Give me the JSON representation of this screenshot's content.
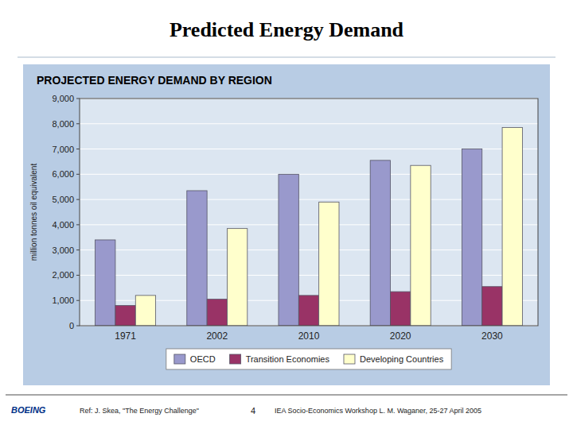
{
  "chart_data": {
    "type": "bar",
    "title": "Predicted Energy Demand",
    "subtitle": "PROJECTED ENERGY DEMAND BY REGION",
    "y_label": "million tonnes oil equivalent",
    "categories": [
      "1971",
      "2002",
      "2010",
      "2020",
      "2030"
    ],
    "series": [
      {
        "name": "OECD",
        "color": "#9999cc",
        "values": [
          3400,
          5350,
          6000,
          6550,
          7000
        ]
      },
      {
        "name": "Transition Economies",
        "color": "#993366",
        "values": [
          800,
          1050,
          1200,
          1350,
          1550
        ]
      },
      {
        "name": "Developing Countries",
        "color": "#ffffcc",
        "values": [
          1200,
          3850,
          4900,
          6350,
          7850
        ]
      }
    ],
    "ylim": [
      0,
      9000
    ],
    "yticks": [
      0,
      {
        "value": 1000,
        "label": "1,000"
      },
      {
        "value": 2000,
        "label": "2,000"
      },
      {
        "value": 3000,
        "label": "3,000"
      },
      {
        "value": 4000,
        "label": "4,000"
      },
      {
        "value": 5000,
        "label": "5,000"
      },
      {
        "value": 6000,
        "label": "6,000"
      },
      {
        "value": 7000,
        "label": "7,000"
      },
      {
        "value": 8000,
        "label": "8,000"
      },
      {
        "value": 9000,
        "label": "9,000"
      }
    ],
    "grid": true,
    "legend": "bottom",
    "annotations": [
      "BOEING",
      "Ref: J. Skea, \"The Energy Challenge\"",
      "4",
      "IEA Socio-Economics Workshop  L. M. Waganer, 25-27 April 2005"
    ]
  }
}
